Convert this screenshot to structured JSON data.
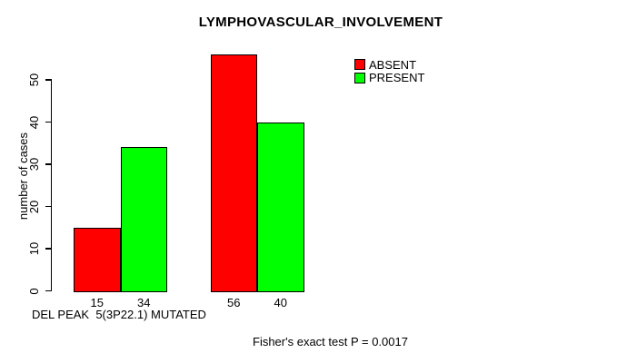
{
  "chart_data": {
    "type": "bar",
    "title": "LYMPHOVASCULAR_INVOLVEMENT",
    "ylabel": "number of cases",
    "xlabel": "DEL PEAK  5(3P22.1) MUTATED",
    "footer": "Fisher's exact test P = 0.0017",
    "ylim": [
      0,
      50
    ],
    "yticks": [
      0,
      10,
      20,
      30,
      40,
      50
    ],
    "grid": false,
    "legend_position": "top-right",
    "series": [
      {
        "name": "ABSENT",
        "color": "#ff0000",
        "values": [
          15,
          56
        ]
      },
      {
        "name": "PRESENT",
        "color": "#00ff00",
        "values": [
          34,
          40
        ]
      }
    ],
    "bar_value_labels": [
      "15",
      "34",
      "56",
      "40"
    ]
  },
  "colors": {
    "background": "#ffffff",
    "bar_border": "#000000",
    "text": "#000000",
    "absent": "#ff0000",
    "present": "#00ff00"
  }
}
